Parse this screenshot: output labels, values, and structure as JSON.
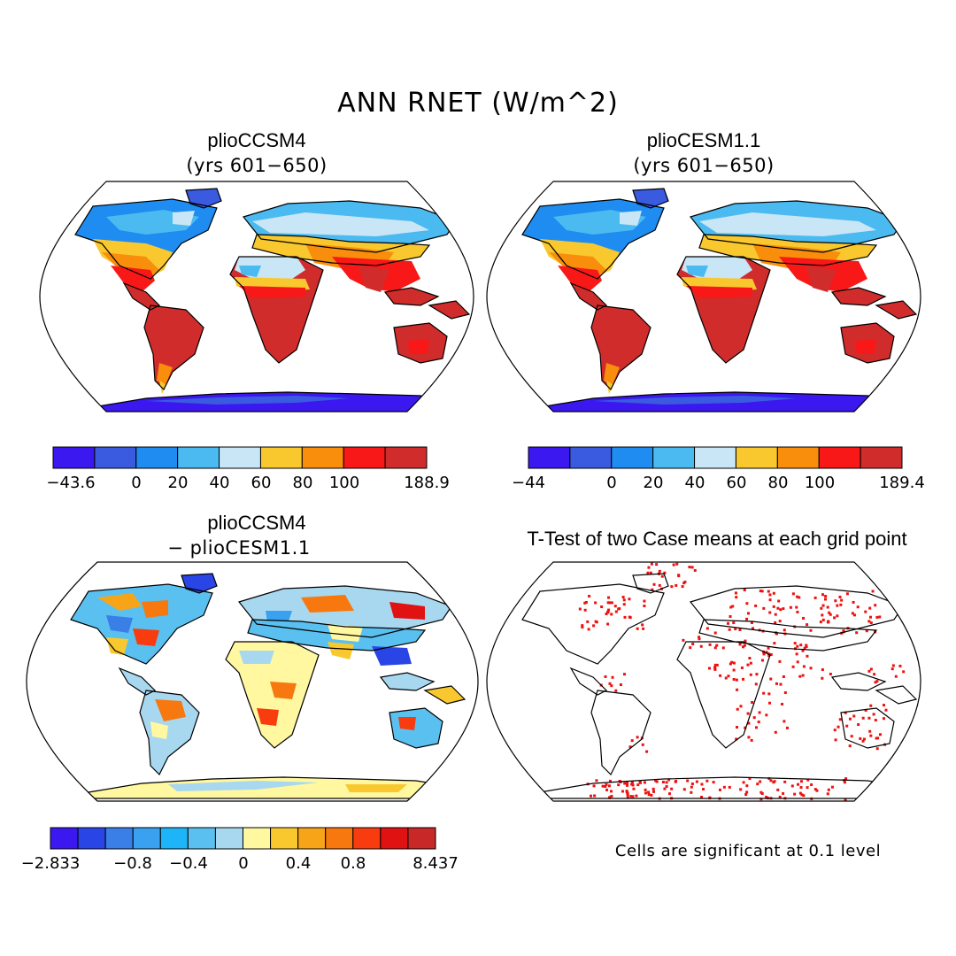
{
  "title": "ANN RNET (W/m^2)",
  "panels": [
    {
      "id": "a",
      "title": "plioCCSM4",
      "subtitle": "(yrs 601−650)",
      "colorbar": {
        "colors": [
          "#3b18f0",
          "#3a5ae0",
          "#1e8cf0",
          "#4bbaf0",
          "#c8e6f5",
          "#f8c82e",
          "#f88e0c",
          "#f81818",
          "#d02c2c"
        ],
        "ticks": [
          "−43.6",
          "0",
          "20",
          "40",
          "60",
          "80",
          "100",
          "188.9"
        ]
      }
    },
    {
      "id": "b",
      "title": "plioCESM1.1",
      "subtitle": "(yrs 601−650)",
      "colorbar": {
        "colors": [
          "#3b18f0",
          "#3a5ae0",
          "#1e8cf0",
          "#4bbaf0",
          "#c8e6f5",
          "#f8c82e",
          "#f88e0c",
          "#f81818",
          "#d02c2c"
        ],
        "ticks": [
          "−44",
          "0",
          "20",
          "40",
          "60",
          "80",
          "100",
          "189.4"
        ]
      }
    },
    {
      "id": "c",
      "title": "plioCCSM4",
      "subtitle": "− plioCESM1.1",
      "colorbar": {
        "colors": [
          "#3b18f0",
          "#2a45e6",
          "#3a7ee8",
          "#3aa0f0",
          "#1eb4f8",
          "#5ac0f0",
          "#a8d8f0",
          "#fff8a0",
          "#f8c82e",
          "#f8a418",
          "#f87810",
          "#f83c10",
          "#e01212",
          "#c82828"
        ],
        "ticks": [
          "−2.833",
          "−0.8",
          "−0.4",
          "0",
          "0.4",
          "0.8",
          "8.437"
        ]
      }
    },
    {
      "id": "d",
      "title": "T-Test of two Case means at each grid point",
      "note": "Cells are significant at 0.1 level",
      "marker_color": "#f01010"
    }
  ]
}
